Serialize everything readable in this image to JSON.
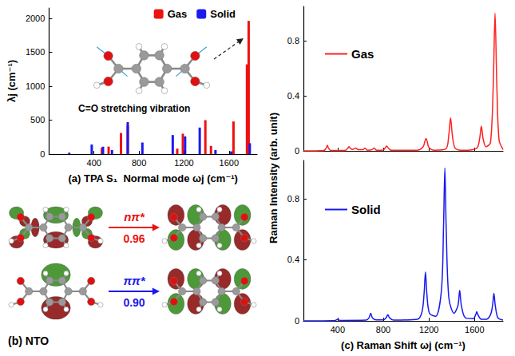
{
  "chart_data": [
    {
      "type": "bar",
      "xlabel": "(a) TPA S₁  Normal mode ωj (cm⁻¹)",
      "ylabel": "λj (cm⁻¹)",
      "xlim": [
        0,
        1850
      ],
      "xticks": [
        400,
        800,
        1200,
        1600
      ],
      "ylim": [
        0,
        2150
      ],
      "yticks": [
        0,
        500,
        1000,
        1500,
        2000
      ],
      "legend": "upper right",
      "annotation": "C=O stretching vibration",
      "series": [
        {
          "name": "Gas",
          "color": "#ee1111",
          "x": [
            470,
            530,
            640,
            700,
            1140,
            1190,
            1390,
            1440,
            1640,
            1760,
            1775
          ],
          "values": [
            90,
            110,
            310,
            420,
            80,
            300,
            500,
            120,
            480,
            1320,
            1960
          ]
        },
        {
          "name": "Solid",
          "color": "#1a1aee",
          "x": [
            180,
            380,
            480,
            560,
            700,
            830,
            1100,
            1210,
            1340,
            1480,
            1620,
            1785
          ],
          "values": [
            20,
            140,
            110,
            60,
            470,
            170,
            280,
            260,
            390,
            60,
            40,
            160
          ]
        }
      ]
    },
    {
      "type": "line",
      "ylabel": "Raman Intensity (arb. unit)",
      "xlim": [
        100,
        1850
      ],
      "xticks": [
        400,
        800,
        1200,
        1600
      ],
      "ylim": [
        0,
        1.05
      ],
      "yticks": [
        0,
        0.4,
        0.8
      ],
      "tick_labels": "y",
      "legend": "upper left",
      "series": [
        {
          "name": "Gas",
          "color": "#ff2020",
          "x": [
            100,
            280,
            300,
            310,
            320,
            340,
            470,
            490,
            500,
            510,
            530,
            560,
            580,
            620,
            640,
            660,
            700,
            720,
            740,
            800,
            820,
            830,
            840,
            870,
            1100,
            1150,
            1165,
            1175,
            1185,
            1200,
            1250,
            1350,
            1375,
            1390,
            1405,
            1430,
            1500,
            1620,
            1645,
            1660,
            1675,
            1700,
            1740,
            1765,
            1780,
            1795,
            1815,
            1850
          ],
          "values": [
            0,
            0.003,
            0.02,
            0.04,
            0.02,
            0.003,
            0.005,
            0.02,
            0.03,
            0.02,
            0.01,
            0.02,
            0.008,
            0.008,
            0.02,
            0.005,
            0.008,
            0.02,
            0.005,
            0.006,
            0.025,
            0.035,
            0.025,
            0.004,
            0.005,
            0.03,
            0.07,
            0.09,
            0.07,
            0.025,
            0.005,
            0.015,
            0.12,
            0.24,
            0.12,
            0.02,
            0.004,
            0.02,
            0.09,
            0.18,
            0.09,
            0.03,
            0.06,
            0.5,
            1.0,
            0.5,
            0.08,
            0.01
          ]
        }
      ]
    },
    {
      "type": "line",
      "xlabel": "(c) Raman Shift ωj (cm⁻¹)",
      "xlim": [
        100,
        1850
      ],
      "xticks": [
        400,
        800,
        1200,
        1600
      ],
      "ylim": [
        0,
        1.05
      ],
      "yticks": [
        0,
        0.4,
        0.8
      ],
      "legend": "upper left",
      "series": [
        {
          "name": "Solid",
          "color": "#1a1aee",
          "x": [
            100,
            380,
            400,
            420,
            650,
            675,
            690,
            705,
            740,
            800,
            825,
            840,
            855,
            890,
            1100,
            1140,
            1158,
            1170,
            1182,
            1205,
            1260,
            1310,
            1328,
            1340,
            1352,
            1375,
            1420,
            1455,
            1470,
            1485,
            1520,
            1590,
            1610,
            1620,
            1630,
            1660,
            1700,
            1740,
            1758,
            1770,
            1782,
            1805,
            1850
          ],
          "values": [
            0,
            0.003,
            0.01,
            0.003,
            0.005,
            0.02,
            0.05,
            0.02,
            0.006,
            0.006,
            0.02,
            0.04,
            0.02,
            0.005,
            0.01,
            0.06,
            0.18,
            0.32,
            0.18,
            0.05,
            0.03,
            0.2,
            0.6,
            1.0,
            0.6,
            0.15,
            0.05,
            0.1,
            0.2,
            0.1,
            0.02,
            0.015,
            0.04,
            0.06,
            0.04,
            0.01,
            0.01,
            0.04,
            0.1,
            0.18,
            0.1,
            0.02,
            0.005
          ]
        }
      ]
    }
  ],
  "diagram": {
    "panel": "(b) NTO",
    "transitions": [
      {
        "label": "nπ*",
        "value": "0.96",
        "color": "#ee1111"
      },
      {
        "label": "ππ*",
        "value": "0.90",
        "color": "#1a1aee"
      }
    ]
  }
}
